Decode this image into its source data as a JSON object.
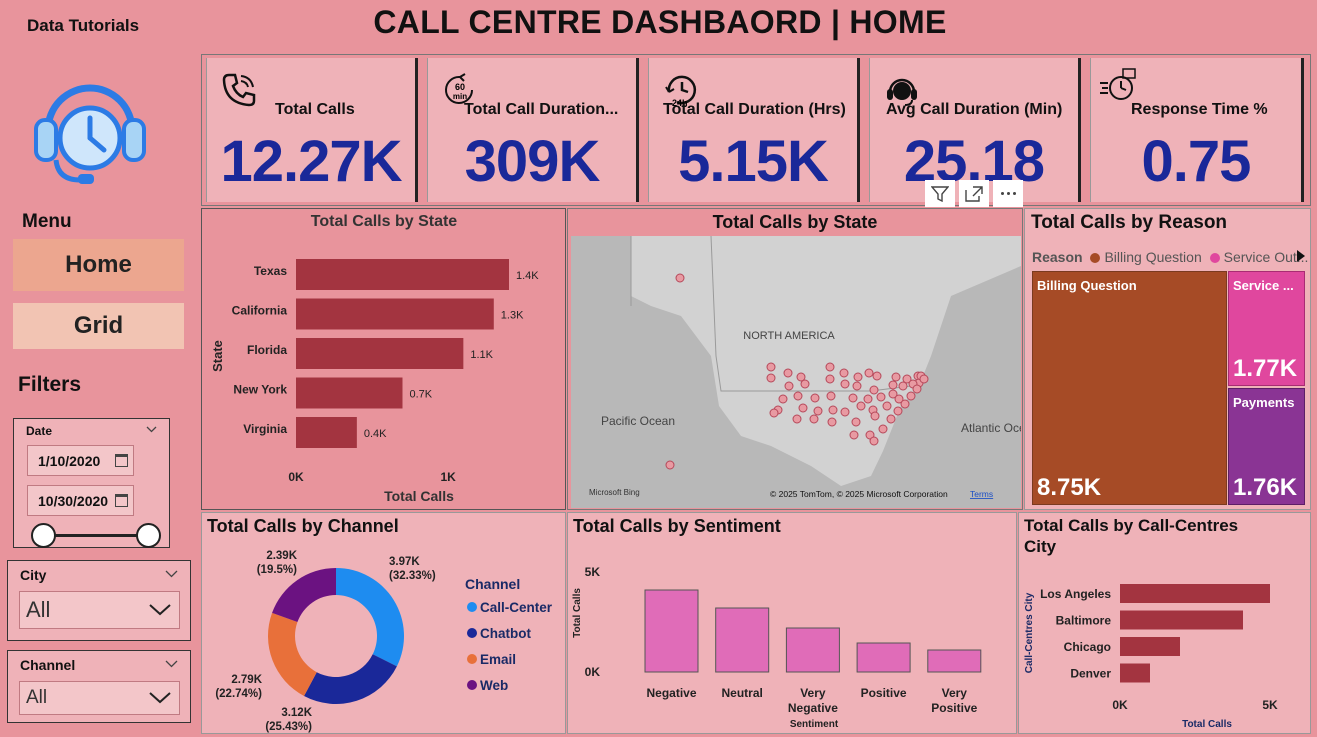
{
  "brand": "Data Tutorials",
  "title": "CALL CENTRE DASHBAORD | HOME",
  "menu": {
    "label": "Menu",
    "home": "Home",
    "grid": "Grid"
  },
  "filters": {
    "label": "Filters",
    "date": {
      "title": "Date",
      "start": "1/10/2020",
      "end": "10/30/2020"
    },
    "city": {
      "title": "City",
      "value": "All"
    },
    "channel": {
      "title": "Channel",
      "value": "All"
    }
  },
  "kpis": [
    {
      "label": "Total Calls",
      "value": "12.27K",
      "icon": "phone-icon"
    },
    {
      "label": "Total Call Duration...",
      "value": "309K",
      "icon": "timer-60min-icon"
    },
    {
      "label": "Total Call Duration (Hrs)",
      "value": "5.15K",
      "icon": "clock-24h-icon"
    },
    {
      "label": "Avg Call Duration (Min)",
      "value": "25.18",
      "icon": "headset-icon"
    },
    {
      "label": "Response Time %",
      "value": "0.75",
      "icon": "stopwatch-icon"
    }
  ],
  "visual_header": {
    "filter_icon": "filter-icon",
    "focus_icon": "focus-mode-icon",
    "more_icon": "more-options-icon"
  },
  "map": {
    "title": "Total Calls by State",
    "labels": {
      "continent": "NORTH AMERICA",
      "pacific": "Pacific Ocean",
      "atlantic": "Atlantic Oce"
    },
    "attribution": "© 2025 TomTom, © 2025 Microsoft Corporation",
    "terms": "Terms",
    "bing": "Microsoft Bing"
  },
  "treemap": {
    "title": "Total Calls by Reason",
    "legend_title": "Reason",
    "legend": [
      {
        "name": "Billing Question",
        "color": "#a64b26"
      },
      {
        "name": "Service Out...",
        "color": "#e0479e"
      }
    ],
    "tiles": [
      {
        "name": "Billing Question",
        "value": "8.75K",
        "color": "#a64b26"
      },
      {
        "name": "Service ...",
        "value": "1.77K",
        "color": "#e0479e"
      },
      {
        "name": "Payments",
        "value": "1.76K",
        "color": "#8a3494"
      }
    ]
  },
  "donut_legend_title": "Channel",
  "chart_data": [
    {
      "type": "bar",
      "orientation": "horizontal",
      "title": "Total Calls by State",
      "xlabel": "Total Calls",
      "ylabel": "State",
      "categories": [
        "Texas",
        "California",
        "Florida",
        "New York",
        "Virginia"
      ],
      "values": [
        1400,
        1300,
        1100,
        700,
        400
      ],
      "data_labels": [
        "1.4K",
        "1.3K",
        "1.1K",
        "0.7K",
        "0.4K"
      ],
      "xticks": [
        "0K",
        "1K"
      ],
      "xlim": [
        0,
        1400
      ],
      "color": "#a33440"
    },
    {
      "type": "pie",
      "style": "donut",
      "title": "Total Calls by Channel",
      "categories": [
        "Call-Center",
        "Chatbot",
        "Email",
        "Web"
      ],
      "values": [
        3970,
        3120,
        2790,
        2390
      ],
      "data_labels": [
        "3.97K (32.33%)",
        "3.12K (25.43%)",
        "2.79K (22.74%)",
        "2.39K (19.5%)"
      ],
      "colors": [
        "#1e8cf0",
        "#1a2899",
        "#e8703a",
        "#6b1281"
      ]
    },
    {
      "type": "bar",
      "title": "Total Calls by Sentiment",
      "xlabel": "Sentiment",
      "ylabel": "Total Calls",
      "categories": [
        "Negative",
        "Neutral",
        "Very Negative",
        "Positive",
        "Very Positive"
      ],
      "values": [
        4100,
        3200,
        2200,
        1450,
        1100
      ],
      "yticks": [
        "0K",
        "5K"
      ],
      "ylim": [
        0,
        5000
      ],
      "color": "#e06cb8"
    },
    {
      "type": "bar",
      "orientation": "horizontal",
      "title": "Total Calls by Call-Centres City",
      "xlabel": "Total Calls",
      "ylabel": "Call-Centres City",
      "categories": [
        "Los Angeles",
        "Baltimore",
        "Chicago",
        "Denver"
      ],
      "values": [
        5000,
        4100,
        2000,
        1000
      ],
      "xticks": [
        "0K",
        "5K"
      ],
      "xlim": [
        0,
        5300
      ],
      "color": "#a33440"
    }
  ]
}
